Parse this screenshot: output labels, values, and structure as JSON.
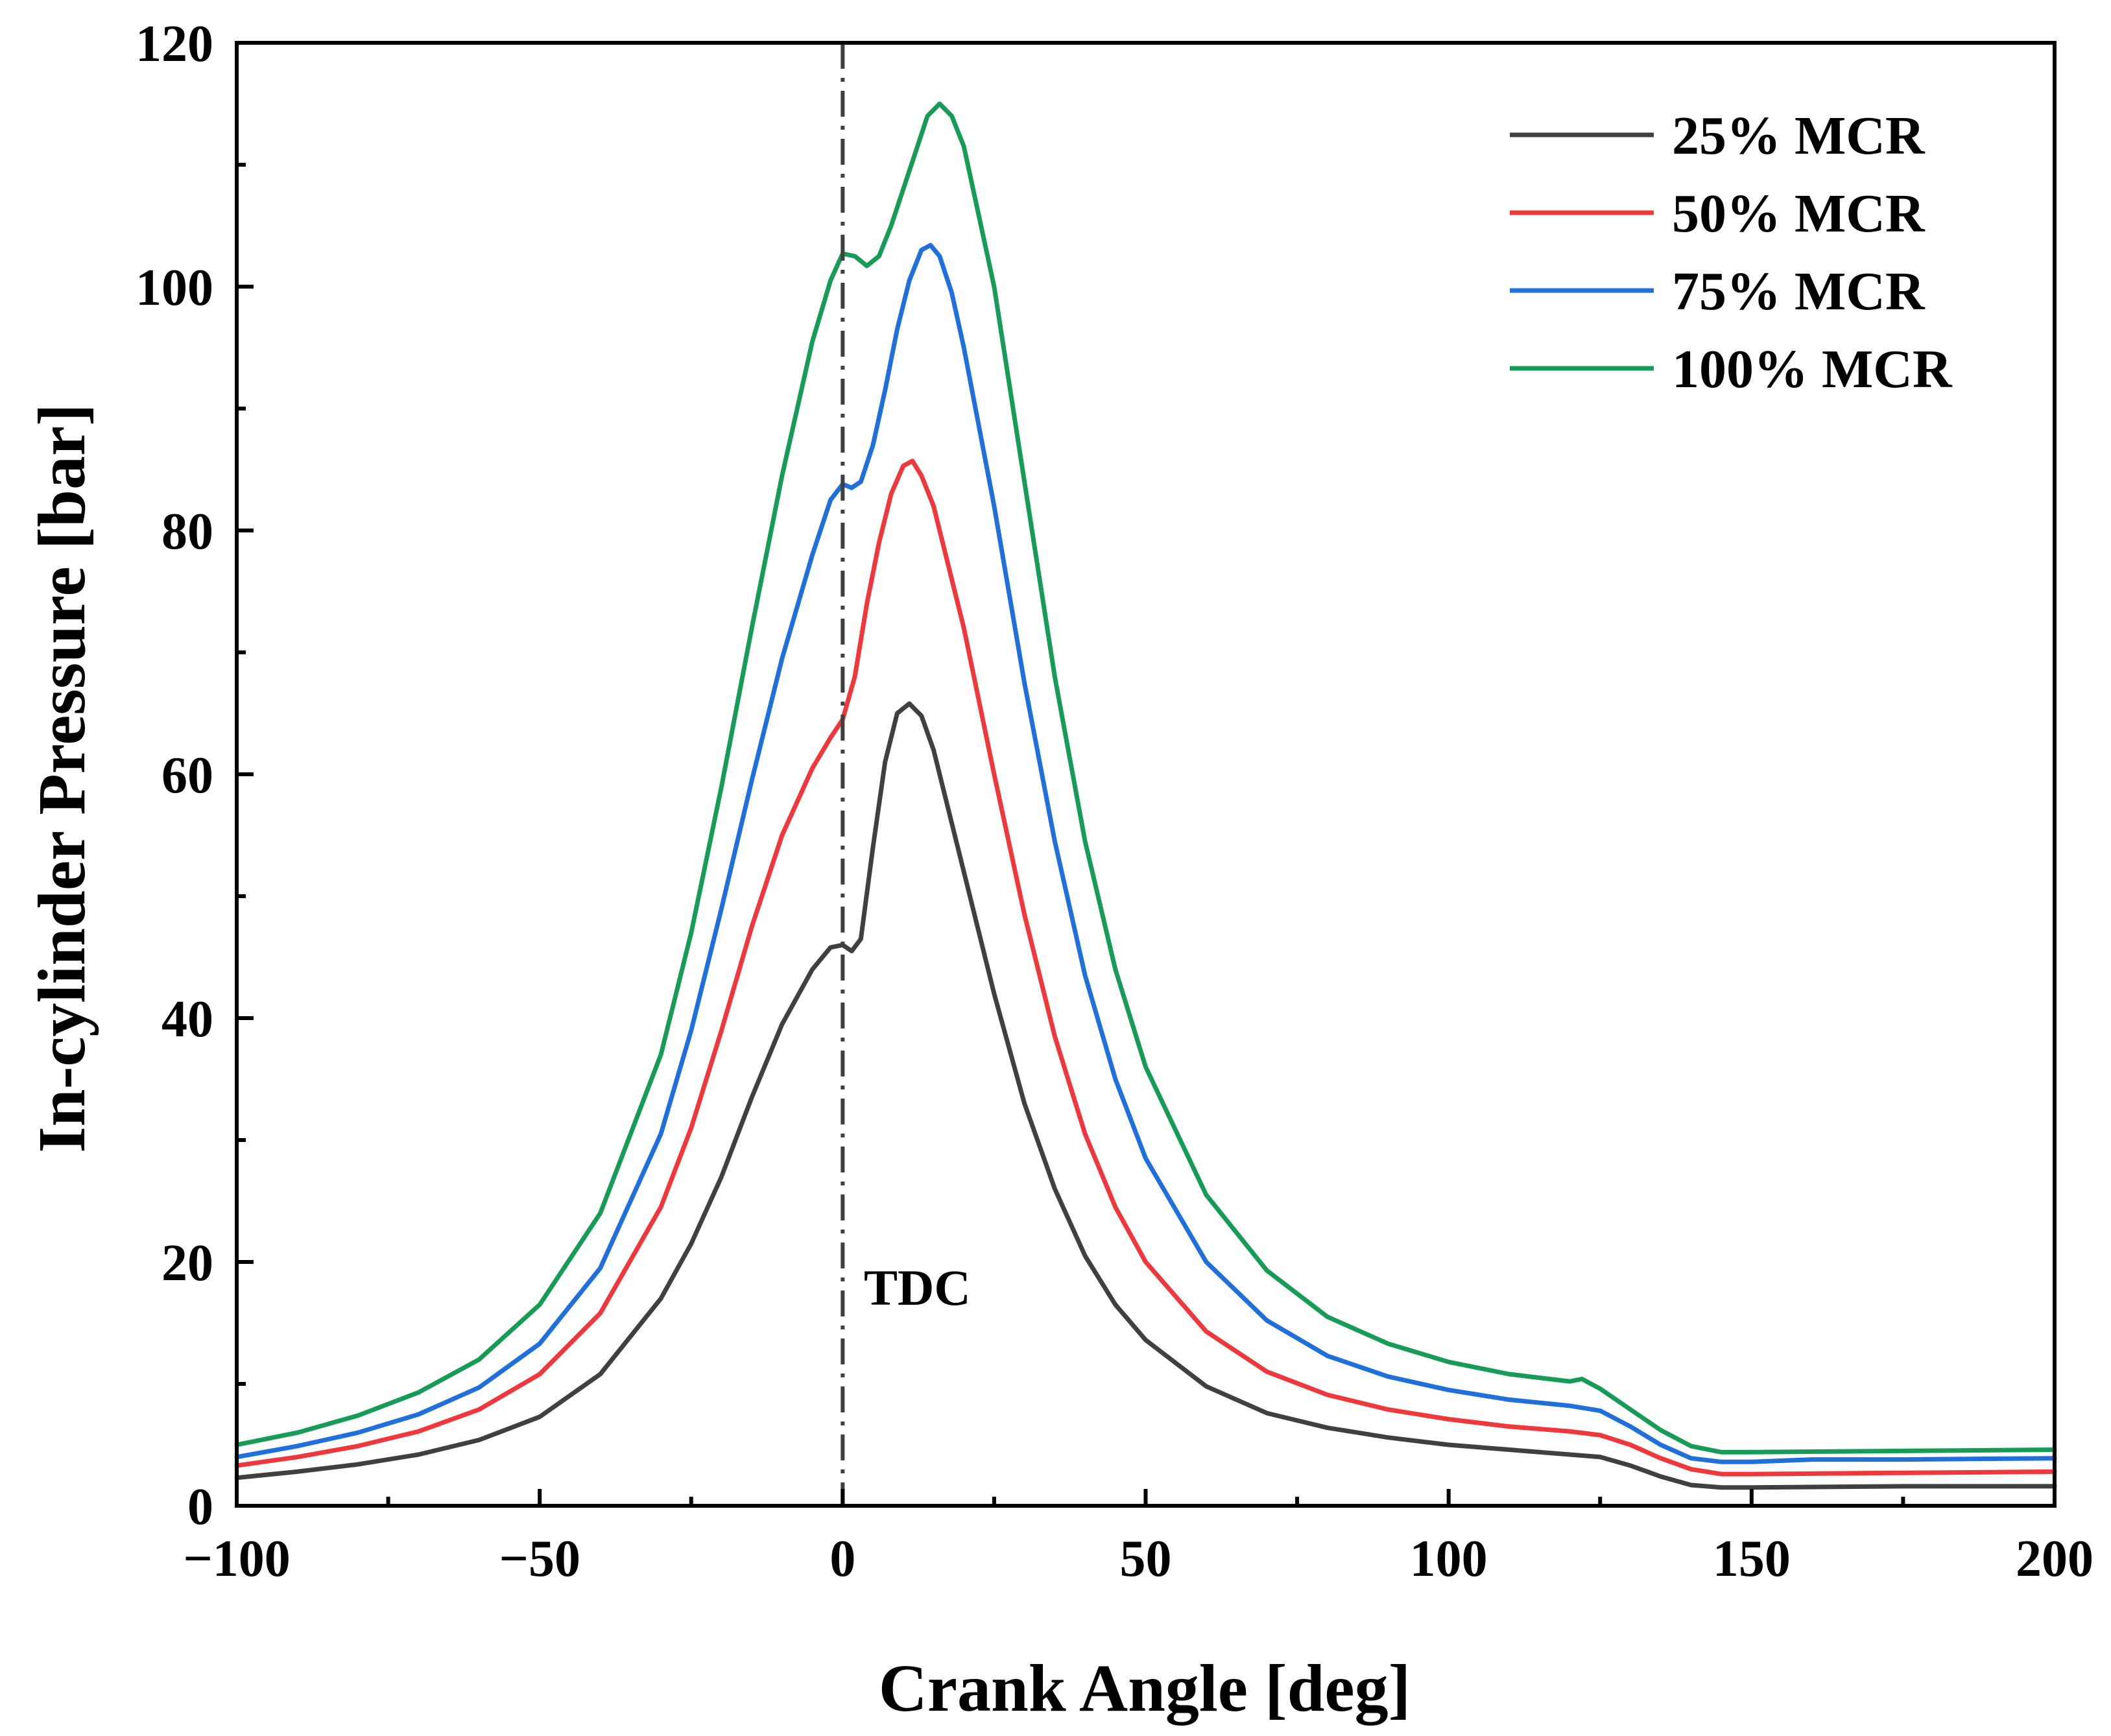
{
  "chart_data": {
    "type": "line",
    "title": "",
    "xlabel": "Crank Angle [deg]",
    "ylabel": "In-cylinder Pressure [bar]",
    "xlim": [
      -100,
      200
    ],
    "ylim": [
      0,
      120
    ],
    "xticks": [
      -100,
      -50,
      0,
      50,
      100,
      150,
      200
    ],
    "xtick_labels": [
      "−100",
      "−50",
      "0",
      "50",
      "100",
      "150",
      "200"
    ],
    "yticks": [
      0,
      20,
      40,
      60,
      80,
      100,
      120
    ],
    "ytick_labels": [
      "0",
      "20",
      "40",
      "60",
      "80",
      "100",
      "120"
    ],
    "grid": false,
    "legend_position": "top-right",
    "reference_line": {
      "x": 0,
      "style": "dash-dot",
      "color": "#404040"
    },
    "annotation": {
      "text": "TDC",
      "x": 3.5,
      "y": 16.5
    },
    "series": [
      {
        "name": "25% MCR",
        "color": "#404040",
        "points": [
          [
            -100,
            2.3
          ],
          [
            -90,
            2.8
          ],
          [
            -80,
            3.4
          ],
          [
            -70,
            4.2
          ],
          [
            -60,
            5.4
          ],
          [
            -50,
            7.3
          ],
          [
            -40,
            10.8
          ],
          [
            -30,
            17.0
          ],
          [
            -25,
            21.5
          ],
          [
            -20,
            27.0
          ],
          [
            -15,
            33.5
          ],
          [
            -10,
            39.5
          ],
          [
            -5,
            44.0
          ],
          [
            -2,
            45.8
          ],
          [
            0,
            46.0
          ],
          [
            1.5,
            45.5
          ],
          [
            3,
            46.5
          ],
          [
            5,
            54.0
          ],
          [
            7,
            61.0
          ],
          [
            9,
            65.0
          ],
          [
            11,
            65.8
          ],
          [
            13,
            64.8
          ],
          [
            15,
            62.0
          ],
          [
            20,
            52.0
          ],
          [
            25,
            42.0
          ],
          [
            30,
            33.0
          ],
          [
            35,
            26.0
          ],
          [
            40,
            20.5
          ],
          [
            45,
            16.5
          ],
          [
            50,
            13.6
          ],
          [
            60,
            9.8
          ],
          [
            70,
            7.6
          ],
          [
            80,
            6.4
          ],
          [
            90,
            5.6
          ],
          [
            100,
            5.0
          ],
          [
            110,
            4.6
          ],
          [
            120,
            4.2
          ],
          [
            125,
            4.0
          ],
          [
            130,
            3.3
          ],
          [
            135,
            2.4
          ],
          [
            140,
            1.7
          ],
          [
            145,
            1.5
          ],
          [
            150,
            1.5
          ],
          [
            175,
            1.6
          ],
          [
            200,
            1.6
          ]
        ]
      },
      {
        "name": "50% MCR",
        "color": "#f0373b",
        "points": [
          [
            -100,
            3.3
          ],
          [
            -90,
            4.0
          ],
          [
            -80,
            4.9
          ],
          [
            -70,
            6.1
          ],
          [
            -60,
            7.9
          ],
          [
            -50,
            10.8
          ],
          [
            -40,
            15.8
          ],
          [
            -30,
            24.5
          ],
          [
            -25,
            31.0
          ],
          [
            -20,
            39.0
          ],
          [
            -15,
            47.5
          ],
          [
            -10,
            55.0
          ],
          [
            -5,
            60.5
          ],
          [
            -2,
            63.0
          ],
          [
            0,
            64.5
          ],
          [
            2,
            68.0
          ],
          [
            4,
            74.0
          ],
          [
            6,
            79.0
          ],
          [
            8,
            83.0
          ],
          [
            10,
            85.3
          ],
          [
            11.5,
            85.7
          ],
          [
            13,
            84.5
          ],
          [
            15,
            82.0
          ],
          [
            20,
            72.0
          ],
          [
            25,
            60.0
          ],
          [
            30,
            48.5
          ],
          [
            35,
            38.5
          ],
          [
            40,
            30.5
          ],
          [
            45,
            24.5
          ],
          [
            50,
            20.0
          ],
          [
            60,
            14.3
          ],
          [
            70,
            11.0
          ],
          [
            80,
            9.1
          ],
          [
            90,
            7.9
          ],
          [
            100,
            7.1
          ],
          [
            110,
            6.5
          ],
          [
            120,
            6.1
          ],
          [
            125,
            5.8
          ],
          [
            130,
            5.0
          ],
          [
            135,
            3.9
          ],
          [
            140,
            3.0
          ],
          [
            145,
            2.6
          ],
          [
            150,
            2.6
          ],
          [
            175,
            2.7
          ],
          [
            200,
            2.8
          ]
        ]
      },
      {
        "name": "75% MCR",
        "color": "#1f6fdc",
        "points": [
          [
            -100,
            4.0
          ],
          [
            -90,
            4.9
          ],
          [
            -80,
            6.0
          ],
          [
            -70,
            7.5
          ],
          [
            -60,
            9.7
          ],
          [
            -50,
            13.3
          ],
          [
            -40,
            19.5
          ],
          [
            -30,
            30.5
          ],
          [
            -25,
            39.0
          ],
          [
            -20,
            49.0
          ],
          [
            -15,
            59.5
          ],
          [
            -10,
            69.5
          ],
          [
            -5,
            78.0
          ],
          [
            -2,
            82.5
          ],
          [
            0,
            83.8
          ],
          [
            1.5,
            83.5
          ],
          [
            3,
            84.0
          ],
          [
            5,
            87.0
          ],
          [
            7,
            91.5
          ],
          [
            9,
            96.5
          ],
          [
            11,
            100.5
          ],
          [
            13,
            103.0
          ],
          [
            14.5,
            103.4
          ],
          [
            16,
            102.5
          ],
          [
            18,
            99.5
          ],
          [
            20,
            95.0
          ],
          [
            25,
            82.0
          ],
          [
            30,
            67.5
          ],
          [
            35,
            54.5
          ],
          [
            40,
            43.5
          ],
          [
            45,
            35.0
          ],
          [
            50,
            28.5
          ],
          [
            60,
            20.0
          ],
          [
            70,
            15.2
          ],
          [
            80,
            12.3
          ],
          [
            90,
            10.6
          ],
          [
            100,
            9.5
          ],
          [
            110,
            8.7
          ],
          [
            120,
            8.2
          ],
          [
            125,
            7.8
          ],
          [
            130,
            6.5
          ],
          [
            135,
            5.0
          ],
          [
            140,
            3.9
          ],
          [
            145,
            3.6
          ],
          [
            150,
            3.6
          ],
          [
            160,
            3.8
          ],
          [
            175,
            3.8
          ],
          [
            200,
            3.9
          ]
        ]
      },
      {
        "name": "100% MCR",
        "color": "#169c57",
        "points": [
          [
            -100,
            5.0
          ],
          [
            -90,
            6.0
          ],
          [
            -80,
            7.4
          ],
          [
            -70,
            9.3
          ],
          [
            -60,
            12.0
          ],
          [
            -50,
            16.5
          ],
          [
            -40,
            24.0
          ],
          [
            -30,
            37.0
          ],
          [
            -25,
            47.0
          ],
          [
            -20,
            59.0
          ],
          [
            -15,
            72.0
          ],
          [
            -10,
            84.5
          ],
          [
            -5,
            95.5
          ],
          [
            -2,
            100.5
          ],
          [
            0,
            102.7
          ],
          [
            2,
            102.5
          ],
          [
            4,
            101.7
          ],
          [
            6,
            102.5
          ],
          [
            8,
            105.0
          ],
          [
            10,
            108.0
          ],
          [
            12,
            111.0
          ],
          [
            14,
            114.0
          ],
          [
            16,
            115.0
          ],
          [
            18,
            114.0
          ],
          [
            20,
            111.5
          ],
          [
            25,
            100.0
          ],
          [
            30,
            84.0
          ],
          [
            35,
            68.0
          ],
          [
            40,
            54.5
          ],
          [
            45,
            44.0
          ],
          [
            50,
            36.0
          ],
          [
            60,
            25.5
          ],
          [
            70,
            19.3
          ],
          [
            80,
            15.5
          ],
          [
            90,
            13.3
          ],
          [
            100,
            11.8
          ],
          [
            110,
            10.8
          ],
          [
            120,
            10.2
          ],
          [
            122,
            10.4
          ],
          [
            125,
            9.6
          ],
          [
            130,
            7.9
          ],
          [
            135,
            6.2
          ],
          [
            140,
            4.9
          ],
          [
            145,
            4.4
          ],
          [
            150,
            4.4
          ],
          [
            175,
            4.5
          ],
          [
            200,
            4.6
          ]
        ]
      }
    ]
  }
}
